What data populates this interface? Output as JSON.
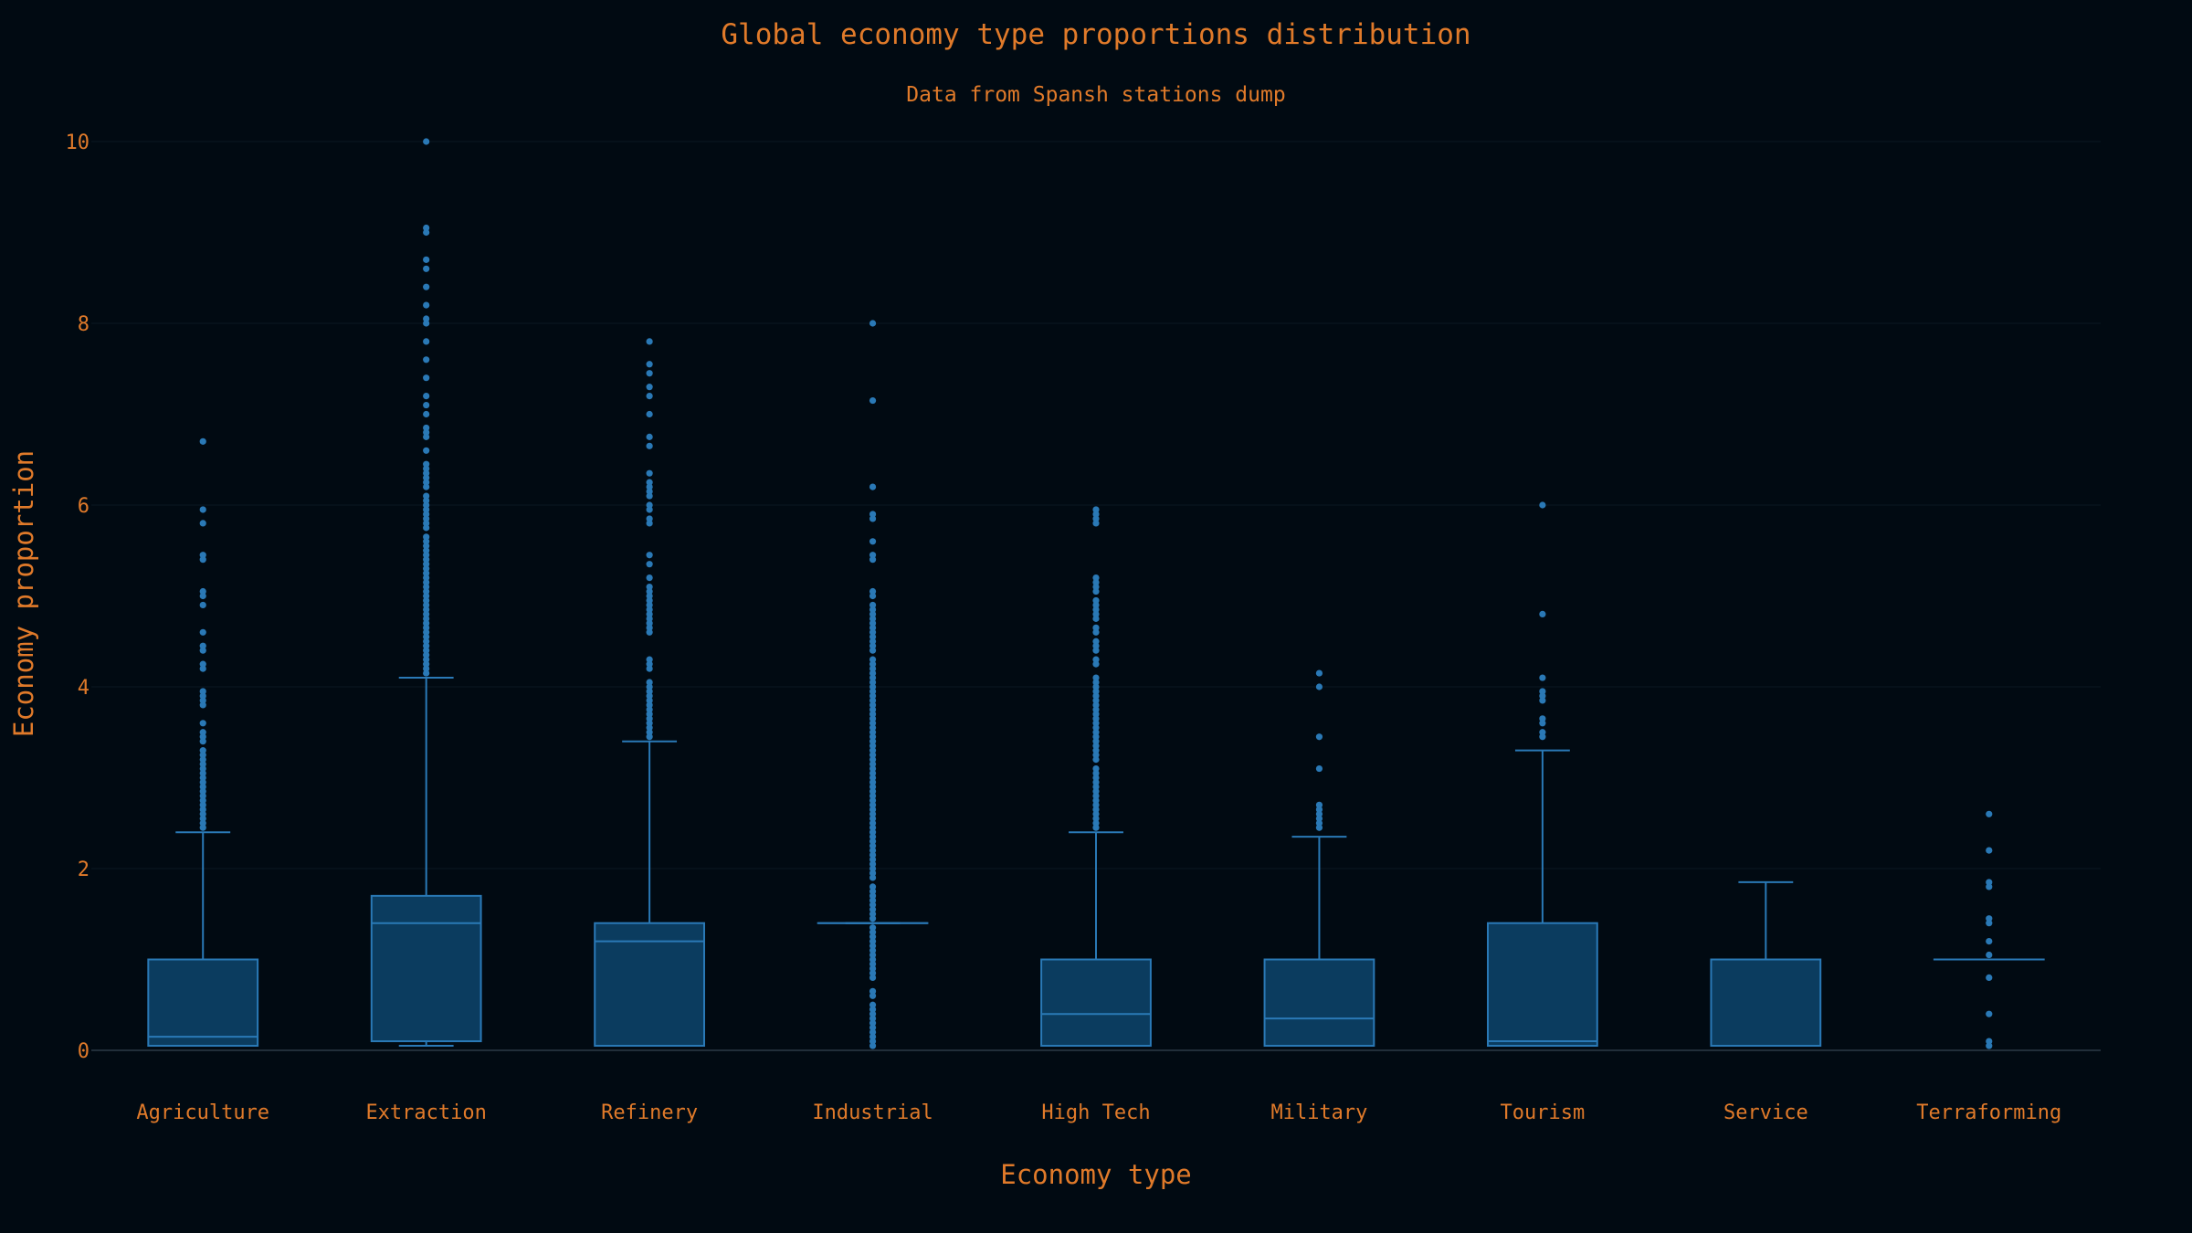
{
  "colors": {
    "background": "#010a12",
    "text": "#e07a2a",
    "box_stroke": "#2a79b6",
    "box_fill": "#0b3c5f",
    "outlier": "#2a79b6",
    "grid": "#0c1822",
    "axis": "#2c3a46"
  },
  "chart_data": {
    "type": "box",
    "title": "Global economy type proportions distribution",
    "subtitle": "Data from Spansh stations dump",
    "xlabel": "Economy type",
    "ylabel": "Economy proportion",
    "ylim": [
      0,
      10
    ],
    "yticks": [
      0,
      2,
      4,
      6,
      8,
      10
    ],
    "grid": true,
    "categories": [
      "Agriculture",
      "Extraction",
      "Refinery",
      "Industrial",
      "High Tech",
      "Military",
      "Tourism",
      "Service",
      "Terraforming"
    ],
    "boxes": [
      {
        "category": "Agriculture",
        "low": 0.05,
        "q1": 0.05,
        "median": 0.15,
        "q3": 1.0,
        "high": 2.4,
        "outliers": [
          2.45,
          2.5,
          2.55,
          2.6,
          2.65,
          2.7,
          2.75,
          2.8,
          2.85,
          2.9,
          2.95,
          3.0,
          3.05,
          3.1,
          3.15,
          3.2,
          3.25,
          3.3,
          3.4,
          3.45,
          3.5,
          3.6,
          3.8,
          3.85,
          3.9,
          3.95,
          4.2,
          4.25,
          4.4,
          4.45,
          4.6,
          4.9,
          5.0,
          5.05,
          5.4,
          5.45,
          5.8,
          5.95,
          6.7
        ]
      },
      {
        "category": "Extraction",
        "low": 0.05,
        "q1": 0.1,
        "median": 1.4,
        "q3": 1.7,
        "high": 4.1,
        "outliers": [
          4.15,
          4.2,
          4.25,
          4.3,
          4.35,
          4.4,
          4.45,
          4.5,
          4.55,
          4.6,
          4.65,
          4.7,
          4.75,
          4.8,
          4.85,
          4.9,
          4.95,
          5.0,
          5.05,
          5.1,
          5.15,
          5.2,
          5.25,
          5.3,
          5.35,
          5.4,
          5.45,
          5.5,
          5.55,
          5.6,
          5.65,
          5.75,
          5.8,
          5.85,
          5.9,
          5.95,
          6.0,
          6.05,
          6.1,
          6.2,
          6.25,
          6.3,
          6.35,
          6.4,
          6.45,
          6.6,
          6.75,
          6.8,
          6.85,
          7.0,
          7.1,
          7.2,
          7.4,
          7.6,
          7.8,
          8.0,
          8.05,
          8.2,
          8.4,
          8.6,
          8.7,
          9.0,
          9.05,
          10.0
        ]
      },
      {
        "category": "Refinery",
        "low": 0.05,
        "q1": 0.05,
        "median": 1.2,
        "q3": 1.4,
        "high": 3.4,
        "outliers": [
          3.45,
          3.5,
          3.55,
          3.6,
          3.65,
          3.7,
          3.75,
          3.8,
          3.85,
          3.9,
          3.95,
          4.0,
          4.05,
          4.2,
          4.25,
          4.3,
          4.6,
          4.65,
          4.7,
          4.75,
          4.8,
          4.85,
          4.9,
          4.95,
          5.0,
          5.05,
          5.1,
          5.2,
          5.35,
          5.45,
          5.8,
          5.85,
          5.95,
          6.0,
          6.1,
          6.15,
          6.2,
          6.25,
          6.35,
          6.65,
          6.75,
          7.0,
          7.2,
          7.3,
          7.45,
          7.55,
          7.8
        ]
      },
      {
        "category": "Industrial",
        "low": 1.4,
        "q1": 1.4,
        "median": 1.4,
        "q3": 1.4,
        "high": 1.4,
        "outliers": [
          0.05,
          0.1,
          0.15,
          0.2,
          0.25,
          0.3,
          0.35,
          0.4,
          0.45,
          0.5,
          0.6,
          0.65,
          0.8,
          0.85,
          0.9,
          0.95,
          1.0,
          1.05,
          1.1,
          1.15,
          1.2,
          1.25,
          1.3,
          1.35,
          1.45,
          1.5,
          1.55,
          1.6,
          1.65,
          1.7,
          1.75,
          1.8,
          1.9,
          1.95,
          2.0,
          2.05,
          2.1,
          2.15,
          2.2,
          2.25,
          2.3,
          2.35,
          2.4,
          2.45,
          2.5,
          2.55,
          2.6,
          2.65,
          2.7,
          2.75,
          2.8,
          2.85,
          2.9,
          2.95,
          3.0,
          3.05,
          3.1,
          3.15,
          3.2,
          3.25,
          3.3,
          3.35,
          3.4,
          3.45,
          3.5,
          3.55,
          3.6,
          3.65,
          3.7,
          3.75,
          3.8,
          3.85,
          3.9,
          3.95,
          4.0,
          4.05,
          4.1,
          4.15,
          4.2,
          4.25,
          4.3,
          4.4,
          4.45,
          4.5,
          4.55,
          4.6,
          4.65,
          4.7,
          4.75,
          4.8,
          4.85,
          4.9,
          5.0,
          5.05,
          5.4,
          5.45,
          5.6,
          5.85,
          5.9,
          6.2,
          7.15,
          8.0
        ]
      },
      {
        "category": "High Tech",
        "low": 0.05,
        "q1": 0.05,
        "median": 0.4,
        "q3": 1.0,
        "high": 2.4,
        "outliers": [
          2.45,
          2.5,
          2.55,
          2.6,
          2.65,
          2.7,
          2.75,
          2.8,
          2.85,
          2.9,
          2.95,
          3.0,
          3.05,
          3.1,
          3.2,
          3.25,
          3.3,
          3.35,
          3.4,
          3.45,
          3.5,
          3.55,
          3.6,
          3.65,
          3.7,
          3.75,
          3.8,
          3.85,
          3.9,
          3.95,
          4.0,
          4.05,
          4.1,
          4.25,
          4.3,
          4.4,
          4.45,
          4.5,
          4.6,
          4.65,
          4.75,
          4.8,
          4.85,
          4.9,
          4.95,
          5.05,
          5.1,
          5.15,
          5.2,
          5.8,
          5.85,
          5.9,
          5.95
        ]
      },
      {
        "category": "Military",
        "low": 0.05,
        "q1": 0.05,
        "median": 0.35,
        "q3": 1.0,
        "high": 2.35,
        "outliers": [
          2.45,
          2.5,
          2.55,
          2.6,
          2.65,
          2.7,
          3.1,
          3.45,
          4.0,
          4.15
        ]
      },
      {
        "category": "Tourism",
        "low": 0.05,
        "q1": 0.05,
        "median": 0.1,
        "q3": 1.4,
        "high": 3.3,
        "outliers": [
          3.45,
          3.5,
          3.6,
          3.65,
          3.85,
          3.9,
          3.95,
          4.1,
          4.8,
          6.0
        ]
      },
      {
        "category": "Service",
        "low": 0.05,
        "q1": 0.05,
        "median": 1.0,
        "q3": 1.0,
        "high": 1.85,
        "outliers": []
      },
      {
        "category": "Terraforming",
        "low": 1.0,
        "q1": 1.0,
        "median": 1.0,
        "q3": 1.0,
        "high": 1.0,
        "outliers": [
          0.05,
          0.1,
          0.4,
          0.8,
          1.05,
          1.2,
          1.4,
          1.45,
          1.8,
          1.85,
          2.2,
          2.6
        ]
      }
    ]
  }
}
